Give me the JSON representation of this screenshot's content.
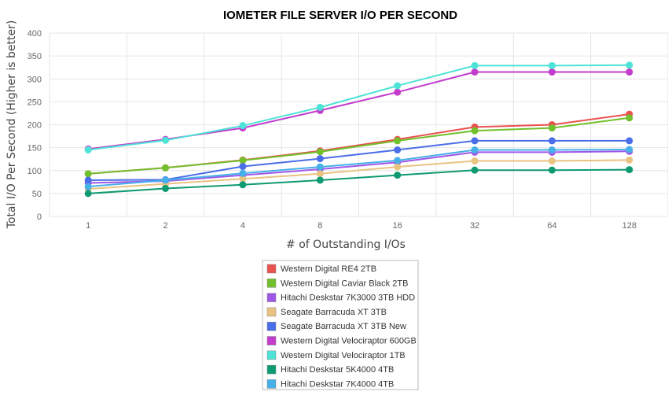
{
  "chart_data": {
    "type": "line",
    "title": "IOMETER FILE SERVER I/O PER SECOND",
    "xlabel": "# of Outstanding I/Os",
    "ylabel": "Total I/O Per Second (Higher is better)",
    "categories": [
      "1",
      "2",
      "4",
      "8",
      "16",
      "32",
      "64",
      "128"
    ],
    "ylim": [
      0,
      400
    ],
    "yticks": [
      0,
      50,
      100,
      150,
      200,
      250,
      300,
      350,
      400
    ],
    "grid": true,
    "legend_position": "bottom-center",
    "series": [
      {
        "name": "Western Digital RE4 2TB",
        "color": "#e8524f",
        "values": [
          93,
          106,
          123,
          143,
          168,
          195,
          200,
          223
        ]
      },
      {
        "name": "Western Digital Caviar Black 2TB",
        "color": "#72c02c",
        "values": [
          93,
          106,
          122,
          141,
          165,
          187,
          193,
          215
        ]
      },
      {
        "name": "Hitachi Deskstar 7K3000 3TB HDD",
        "color": "#a057e8",
        "values": [
          73,
          77,
          90,
          103,
          118,
          140,
          140,
          142
        ]
      },
      {
        "name": "Seagate Barracuda XT 3TB",
        "color": "#e8c382",
        "values": [
          60,
          71,
          82,
          93,
          108,
          121,
          121,
          123
        ]
      },
      {
        "name": "Seagate Barracuda XT 3TB New",
        "color": "#4a6ee8",
        "values": [
          79,
          80,
          109,
          126,
          145,
          165,
          165,
          165
        ]
      },
      {
        "name": "Western Digital Velociraptor 600GB",
        "color": "#c23ccd",
        "values": [
          147,
          168,
          193,
          231,
          271,
          315,
          315,
          315
        ]
      },
      {
        "name": "Western Digital Velociraptor 1TB",
        "color": "#4de3d6",
        "values": [
          145,
          166,
          198,
          238,
          285,
          329,
          329,
          330
        ]
      },
      {
        "name": "Hitachi Deskstar 5K4000 4TB",
        "color": "#0e9a72",
        "values": [
          50,
          61,
          69,
          79,
          90,
          101,
          101,
          102
        ]
      },
      {
        "name": "Hitachi Deskstar 7K4000 4TB",
        "color": "#47b0e8",
        "values": [
          65,
          79,
          94,
          108,
          122,
          145,
          145,
          146
        ]
      }
    ]
  }
}
